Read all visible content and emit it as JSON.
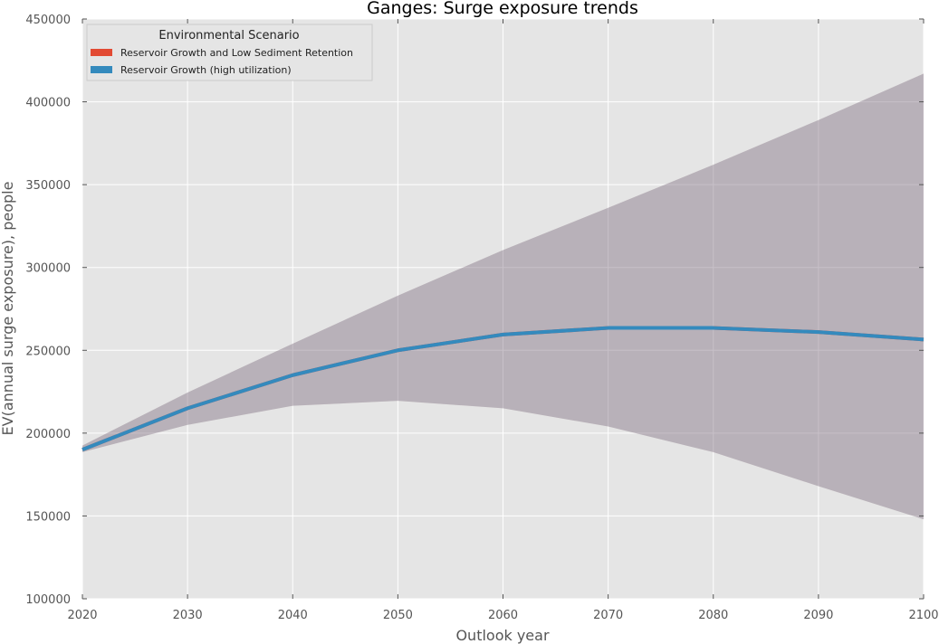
{
  "chart_data": {
    "type": "line",
    "title": "Ganges: Surge exposure trends",
    "xlabel": "Outlook year",
    "ylabel": "EV(annual surge exposure), people",
    "xlim": [
      2020,
      2100
    ],
    "ylim": [
      100000,
      450000
    ],
    "x_ticks": [
      2020,
      2030,
      2040,
      2050,
      2060,
      2070,
      2080,
      2090,
      2100
    ],
    "y_ticks": [
      100000,
      150000,
      200000,
      250000,
      300000,
      350000,
      400000,
      450000
    ],
    "x_tick_labels": [
      "2020",
      "2030",
      "2040",
      "2050",
      "2060",
      "2070",
      "2080",
      "2090",
      "2100"
    ],
    "y_tick_labels": [
      "100000",
      "150000",
      "200000",
      "250000",
      "300000",
      "350000",
      "400000",
      "450000"
    ],
    "grid": true,
    "legend": {
      "title": "Environmental Scenario",
      "placement": "top-left"
    },
    "x": [
      2020,
      2030,
      2040,
      2050,
      2060,
      2070,
      2080,
      2090,
      2100
    ],
    "series": [
      {
        "name": "Reservoir Growth and Low Sediment Retention",
        "color": "#E24A33",
        "values": [
          190000,
          215000,
          235000,
          250000,
          259500,
          263500,
          263500,
          261000,
          256500
        ],
        "band_lower": [
          188500,
          205000,
          216500,
          219500,
          215000,
          204000,
          188500,
          168000,
          148000
        ],
        "band_upper": [
          192500,
          224500,
          254000,
          283000,
          310500,
          336000,
          362000,
          389000,
          417000
        ]
      },
      {
        "name": "Reservoir Growth (high utilization)",
        "color": "#348ABD",
        "values": [
          190000,
          215000,
          235000,
          250000,
          259500,
          263500,
          263500,
          261000,
          256500
        ],
        "band_lower": [
          188500,
          205000,
          216500,
          219500,
          215000,
          204000,
          188500,
          168000,
          148000
        ],
        "band_upper": [
          192500,
          224500,
          254000,
          283000,
          310500,
          336000,
          362000,
          389000,
          417000
        ]
      }
    ]
  }
}
